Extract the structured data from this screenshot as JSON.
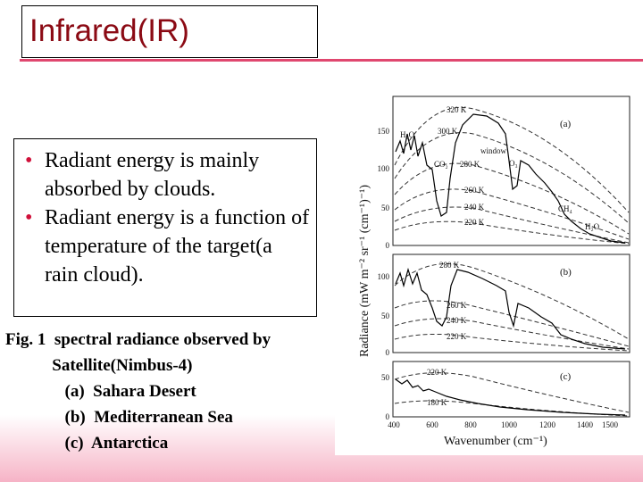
{
  "slide": {
    "title": "Infrared(IR)",
    "bullets": [
      "Radiant energy is mainly absorbed by clouds.",
      "Radiant energy is a function of temperature of the target(a rain cloud)."
    ],
    "caption": [
      "Fig. 1  spectral radiance observed by",
      "           Satellite(Nimbus-4)",
      "              (a)  Sahara Desert",
      "              (b)  Mediterranean Sea",
      "              (c)  Antarctica"
    ]
  },
  "figure": {
    "y_axis_label": "Radiance  (mW m⁻² sr⁻¹ (cm⁻¹)⁻¹)",
    "x_axis_label": "Wavenumber (cm⁻¹)",
    "x_ticks": [
      "400",
      "600",
      "800",
      "1000",
      "1200",
      "1400",
      "1500"
    ],
    "panels": [
      {
        "label": "(a)",
        "y_ticks": [
          "150",
          "100",
          "50",
          "0"
        ],
        "annotations": [
          "320 K",
          "300 K",
          "H₂O",
          "window",
          "CO₂",
          "280 K",
          "O₃",
          "260 K",
          "240 K",
          "220 K",
          "CH₄",
          "H₂O"
        ]
      },
      {
        "label": "(b)",
        "y_ticks": [
          "100",
          "50",
          "0"
        ],
        "annotations": [
          "280 K",
          "260 K",
          "240 K",
          "220 K"
        ]
      },
      {
        "label": "(c)",
        "y_ticks": [
          "50",
          "0"
        ],
        "annotations": [
          "220 K",
          "180 K"
        ]
      }
    ]
  }
}
